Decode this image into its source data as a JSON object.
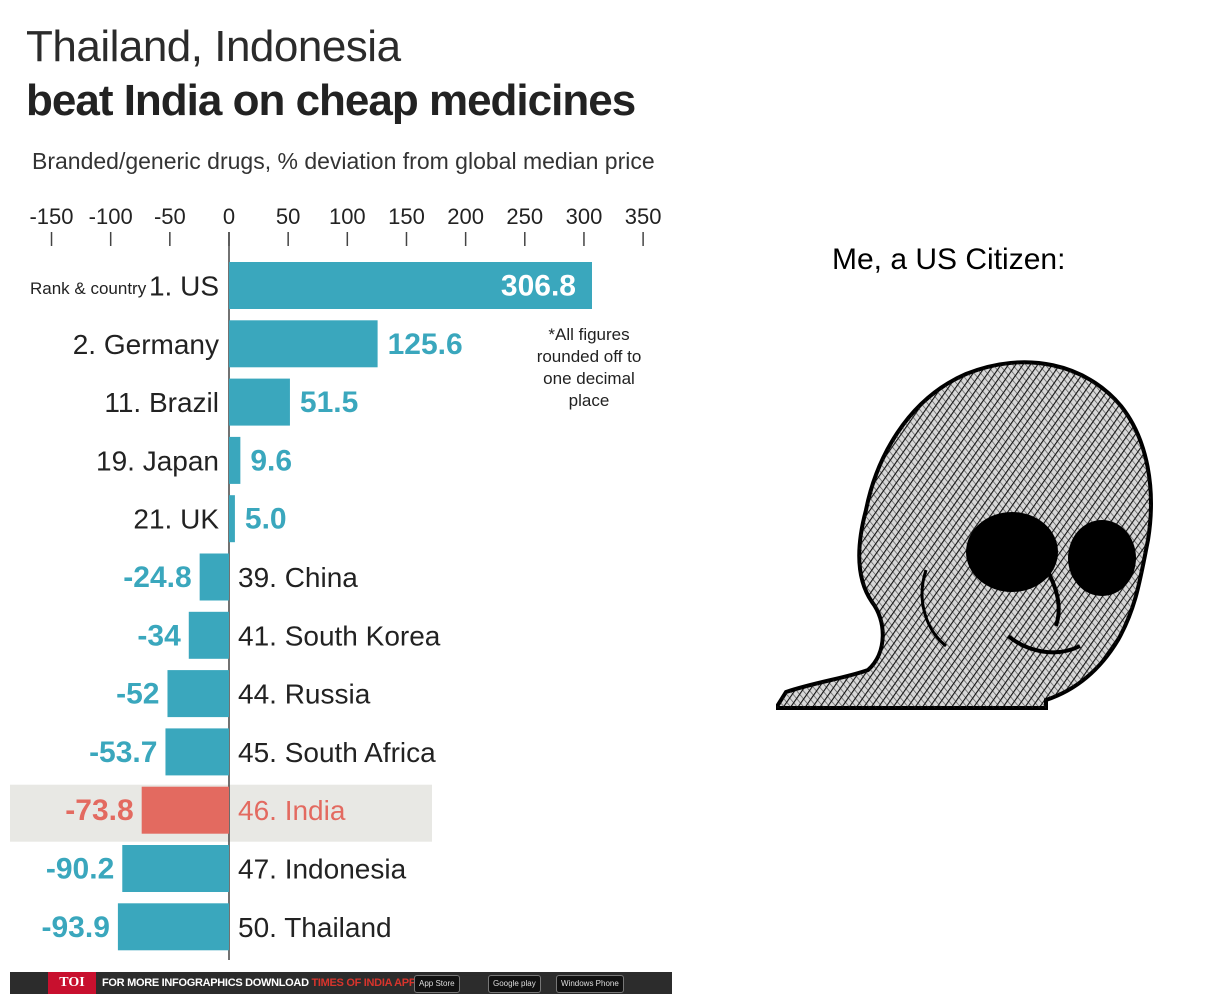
{
  "chart": {
    "title_line1": "Thailand, Indonesia",
    "title_line2": "beat India on cheap medicines",
    "subtitle": "Branded/generic drugs, % deviation from global median price",
    "rank_header": "Rank & country",
    "note": [
      "*All figures",
      "rounded off to",
      "one decimal",
      "place"
    ]
  },
  "chart_data": {
    "type": "bar",
    "orientation": "horizontal",
    "title": "Thailand, Indonesia beat India on cheap medicines",
    "subtitle": "Branded/generic drugs, % deviation from global median price",
    "xlim": [
      -150,
      350
    ],
    "xticks": [
      -150,
      -100,
      -50,
      0,
      50,
      100,
      150,
      200,
      250,
      300,
      350
    ],
    "xtick_labels": [
      "-150",
      "-100",
      "-50",
      "0",
      "50",
      "100",
      "150",
      "200",
      "250",
      "300",
      "350"
    ],
    "categories": [
      "1. US",
      "2. Germany",
      "11. Brazil",
      "19. Japan",
      "21. UK",
      "39. China",
      "41. South Korea",
      "44. Russia",
      "45. South Africa",
      "46. India",
      "47. Indonesia",
      "50. Thailand"
    ],
    "values": [
      306.8,
      125.6,
      51.5,
      9.6,
      5.0,
      -24.8,
      -34,
      -52,
      -53.7,
      -73.8,
      -90.2,
      -93.9
    ],
    "value_labels": [
      "306.8",
      "125.6",
      "51.5",
      "9.6",
      "5.0",
      "-24.8",
      "-34",
      "-52",
      "-53.7",
      "-73.8",
      "-90.2",
      "-93.9"
    ],
    "highlight": "46. India",
    "colors": {
      "bar": "#3aa7bd",
      "highlight_bar": "#e36a60",
      "highlight_band": "#e8e8e4",
      "label_teal": "#3aa7bd",
      "label_dark": "#222222"
    }
  },
  "footer": {
    "brand": "TOI",
    "text_main": "FOR MORE INFOGRAPHICS DOWNLOAD ",
    "text_accent": "TIMES OF INDIA APP",
    "badges": [
      "App Store",
      "Google play",
      "Windows Phone"
    ]
  },
  "meme": {
    "caption": "Me, a US Citizen:",
    "image_icon": "wojak-face-icon"
  }
}
